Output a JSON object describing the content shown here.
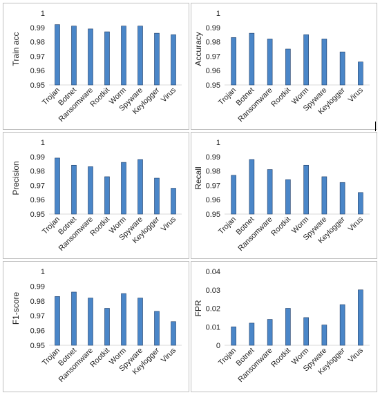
{
  "colors": {
    "bar_fill": "#4a86c8",
    "bar_stroke": "#1f3d66",
    "axis_line": "#d9d9d9",
    "text": "#222222",
    "panel_border": "#bfbfbf"
  },
  "chart_data": [
    {
      "type": "bar",
      "title": "",
      "xlabel": "",
      "ylabel": "Train acc",
      "categories": [
        "Trojan",
        "Botnet",
        "Ransomware",
        "Rootkit",
        "Worm",
        "Spyware",
        "Keylogger",
        "Virus"
      ],
      "values": [
        0.992,
        0.991,
        0.989,
        0.987,
        0.991,
        0.991,
        0.986,
        0.985
      ],
      "ylim": [
        0.95,
        1
      ],
      "yticks": [
        "0.95",
        "0.96",
        "0.97",
        "0.98",
        "0.99",
        "1"
      ],
      "grid": false
    },
    {
      "type": "bar",
      "title": "",
      "xlabel": "",
      "ylabel": "Accuracy",
      "categories": [
        "Trojan",
        "Botnet",
        "Ransomware",
        "Rootkit",
        "Worm",
        "Spyware",
        "Keylogger",
        "Virus"
      ],
      "values": [
        0.983,
        0.986,
        0.982,
        0.975,
        0.985,
        0.982,
        0.973,
        0.966
      ],
      "ylim": [
        0.95,
        1
      ],
      "yticks": [
        "0.95",
        "0.96",
        "0.97",
        "0.98",
        "0.99",
        "1"
      ],
      "grid": false
    },
    {
      "type": "bar",
      "title": "",
      "xlabel": "",
      "ylabel": "Precision",
      "categories": [
        "Trojan",
        "Botnet",
        "Ransomware",
        "Rootkit",
        "Worm",
        "Spyware",
        "Keylogger",
        "Virus"
      ],
      "values": [
        0.989,
        0.984,
        0.983,
        0.976,
        0.986,
        0.988,
        0.975,
        0.968
      ],
      "ylim": [
        0.95,
        1
      ],
      "yticks": [
        "0.95",
        "0.96",
        "0.97",
        "0.98",
        "0.99",
        "1"
      ],
      "grid": false
    },
    {
      "type": "bar",
      "title": "",
      "xlabel": "",
      "ylabel": "Recall",
      "categories": [
        "Trojan",
        "Botnet",
        "Ransomware",
        "Rootkit",
        "Worm",
        "Spyware",
        "Keylogger",
        "Virus"
      ],
      "values": [
        0.977,
        0.988,
        0.981,
        0.974,
        0.984,
        0.976,
        0.972,
        0.965
      ],
      "ylim": [
        0.95,
        1
      ],
      "yticks": [
        "0.95",
        "0.96",
        "0.97",
        "0.98",
        "0.99",
        "1"
      ],
      "grid": false
    },
    {
      "type": "bar",
      "title": "",
      "xlabel": "",
      "ylabel": "F1-score",
      "categories": [
        "Trojan",
        "Botnet",
        "Ransomware",
        "Rootkit",
        "Worm",
        "Spyware",
        "Keylogger",
        "Virus"
      ],
      "values": [
        0.983,
        0.986,
        0.982,
        0.975,
        0.985,
        0.982,
        0.973,
        0.966
      ],
      "ylim": [
        0.95,
        1
      ],
      "yticks": [
        "0.95",
        "0.96",
        "0.97",
        "0.98",
        "0.99",
        "1"
      ],
      "grid": false
    },
    {
      "type": "bar",
      "title": "",
      "xlabel": "",
      "ylabel": "FPR",
      "categories": [
        "Trojan",
        "Botnet",
        "Ransomware",
        "Rootkit",
        "Worm",
        "Spyware",
        "Keylogger",
        "Virus"
      ],
      "values": [
        0.01,
        0.012,
        0.014,
        0.02,
        0.015,
        0.011,
        0.022,
        0.03
      ],
      "ylim": [
        0,
        0.04
      ],
      "yticks": [
        "0",
        "0.01",
        "0.02",
        "0.03",
        "0.04"
      ],
      "grid": false
    }
  ]
}
